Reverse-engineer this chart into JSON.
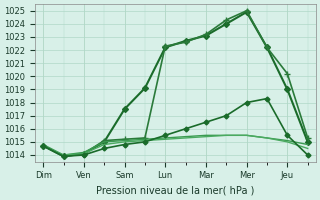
{
  "title": "",
  "xlabel": "Pression niveau de la mer( hPa )",
  "ylabel": "",
  "bg_color": "#d8f0e8",
  "grid_color": "#b0d8c8",
  "line_color_dark": "#1a6b2a",
  "line_color_medium": "#2e8b45",
  "line_color_light": "#4aaa60",
  "xlabels": [
    "Dim",
    "Ven",
    "Sam",
    "Lun",
    "Mar",
    "Mer",
    "Jeu"
  ],
  "xticks": [
    0,
    1,
    2,
    3,
    4,
    5,
    6
  ],
  "ylim": [
    1013.5,
    1025.5
  ],
  "yticks": [
    1014,
    1015,
    1016,
    1017,
    1018,
    1019,
    1020,
    1021,
    1022,
    1023,
    1024,
    1025
  ],
  "series": [
    {
      "x": [
        0,
        0.5,
        1.0,
        1.5,
        2.0,
        2.5,
        3.0,
        3.5,
        4.0,
        4.5,
        5.0,
        5.5,
        6.0,
        6.5
      ],
      "y": [
        1014.7,
        1013.9,
        1014.1,
        1015.0,
        1017.5,
        1019.1,
        1022.2,
        1022.7,
        1023.1,
        1024.0,
        1024.9,
        1022.2,
        1019.0,
        1015.0
      ],
      "color": "#1a6b2a",
      "lw": 1.5,
      "marker": "D",
      "ms": 3
    },
    {
      "x": [
        0,
        0.5,
        1.0,
        1.5,
        2.0,
        2.5,
        3.0,
        3.5,
        4.0,
        4.5,
        5.0,
        5.5,
        6.0,
        6.5
      ],
      "y": [
        1014.7,
        1013.9,
        1014.1,
        1015.1,
        1015.2,
        1015.3,
        1022.3,
        1022.6,
        1023.2,
        1024.3,
        1025.0,
        1022.2,
        1020.2,
        1015.3
      ],
      "color": "#2a7a3a",
      "lw": 1.2,
      "marker": "+",
      "ms": 4
    },
    {
      "x": [
        0,
        0.5,
        1.0,
        1.5,
        2.0,
        2.5,
        3.0,
        3.5,
        4.0,
        4.5,
        5.0,
        5.5,
        6.0,
        6.5
      ],
      "y": [
        1014.8,
        1014.0,
        1014.2,
        1015.0,
        1015.1,
        1015.2,
        1015.3,
        1015.4,
        1015.5,
        1015.5,
        1015.5,
        1015.3,
        1015.1,
        1014.8
      ],
      "color": "#3a9a50",
      "lw": 1.0,
      "marker": null,
      "ms": 0
    },
    {
      "x": [
        0,
        0.5,
        1.0,
        1.5,
        2.0,
        2.5,
        3.0,
        3.5,
        4.0,
        4.5,
        5.0,
        5.5,
        6.0,
        6.5
      ],
      "y": [
        1014.7,
        1014.0,
        1014.1,
        1014.8,
        1015.0,
        1015.1,
        1015.2,
        1015.3,
        1015.4,
        1015.5,
        1015.5,
        1015.3,
        1015.0,
        1014.5
      ],
      "color": "#4aaa60",
      "lw": 1.0,
      "marker": null,
      "ms": 0
    },
    {
      "x": [
        0,
        0.5,
        1.0,
        1.5,
        2.0,
        2.5,
        3.0,
        3.5,
        4.0,
        4.5,
        5.0,
        5.5,
        6.0,
        6.5
      ],
      "y": [
        1014.7,
        1013.9,
        1014.0,
        1014.5,
        1014.8,
        1015.0,
        1015.5,
        1016.0,
        1016.5,
        1017.0,
        1018.0,
        1018.3,
        1015.5,
        1014.0
      ],
      "color": "#1a6b2a",
      "lw": 1.2,
      "marker": "D",
      "ms": 2.5
    }
  ]
}
